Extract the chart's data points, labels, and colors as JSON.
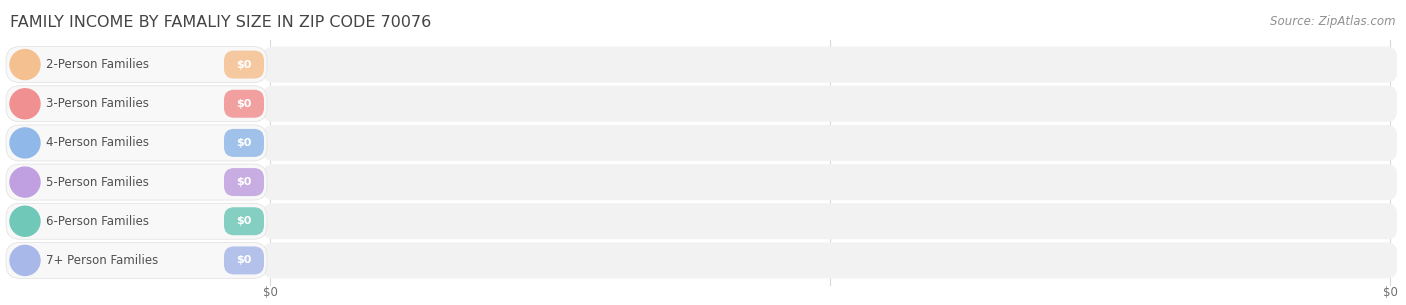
{
  "title": "FAMILY INCOME BY FAMALIY SIZE IN ZIP CODE 70076",
  "source": "Source: ZipAtlas.com",
  "categories": [
    "2-Person Families",
    "3-Person Families",
    "4-Person Families",
    "5-Person Families",
    "6-Person Families",
    "7+ Person Families"
  ],
  "values": [
    0,
    0,
    0,
    0,
    0,
    0
  ],
  "bar_colors": [
    "#f5c090",
    "#f09090",
    "#90b8e8",
    "#c0a0e0",
    "#70c8b8",
    "#a8b8e8"
  ],
  "background_color": "#ffffff",
  "bar_bg_color": "#f2f2f2",
  "title_color": "#444444",
  "label_color": "#505050",
  "source_color": "#909090",
  "title_fontsize": 11.5,
  "label_fontsize": 8.5,
  "value_fontsize": 8,
  "source_fontsize": 8.5,
  "xtick_positions": [
    0,
    0.5,
    1.0
  ],
  "xtick_labels": [
    "$0",
    "",
    "$0"
  ]
}
